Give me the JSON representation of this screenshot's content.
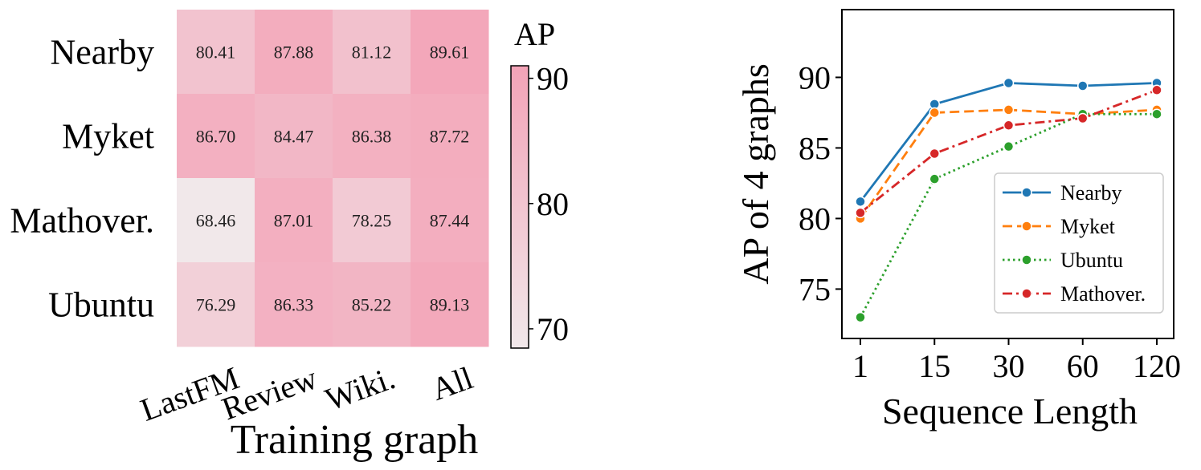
{
  "chart_data": [
    {
      "type": "heatmap",
      "rows": [
        "Nearby",
        "Myket",
        "Mathover.",
        "Ubuntu"
      ],
      "columns": [
        "LastFM",
        "Review",
        "Wiki.",
        "All"
      ],
      "values": [
        [
          80.41,
          87.88,
          81.12,
          89.61
        ],
        [
          86.7,
          84.47,
          86.38,
          87.72
        ],
        [
          68.46,
          87.01,
          78.25,
          87.44
        ],
        [
          76.29,
          86.33,
          85.22,
          89.13
        ]
      ],
      "cell_labels": [
        [
          "80.41",
          "87.88",
          "81.12",
          "89.61"
        ],
        [
          "86.70",
          "84.47",
          "86.38",
          "87.72"
        ],
        [
          "68.46",
          "87.01",
          "78.25",
          "87.44"
        ],
        [
          "76.29",
          "86.33",
          "85.22",
          "89.13"
        ]
      ],
      "xlabel": "Training graph",
      "colorbar": {
        "label": "AP",
        "range": [
          68.46,
          91.0
        ],
        "ticks": [
          70,
          80,
          90
        ],
        "tick_labels": [
          "70",
          "80",
          "90"
        ],
        "color_low": "#f1e8ea",
        "color_high": "#f3a3b7"
      }
    },
    {
      "type": "line",
      "x_categories": [
        "1",
        "15",
        "30",
        "60",
        "120"
      ],
      "series": [
        {
          "name": "Nearby",
          "values": [
            81.2,
            88.1,
            89.6,
            89.4,
            89.6
          ],
          "color": "#1f77b4",
          "dash": "solid"
        },
        {
          "name": "Myket",
          "values": [
            80.0,
            87.5,
            87.7,
            87.4,
            87.7
          ],
          "color": "#ff7f0e",
          "dash": "dashed"
        },
        {
          "name": "Ubuntu",
          "values": [
            73.0,
            82.8,
            85.1,
            87.4,
            87.4
          ],
          "color": "#2ca02c",
          "dash": "dotted"
        },
        {
          "name": "Mathover.",
          "values": [
            80.4,
            84.6,
            86.6,
            87.1,
            89.1
          ],
          "color": "#d62728",
          "dash": "dashdot"
        }
      ],
      "xlabel": "Sequence Length",
      "ylabel": "AP of 4 graphs",
      "yticks": [
        75,
        80,
        85,
        90
      ],
      "ytick_labels": [
        "75",
        "80",
        "85",
        "90"
      ],
      "ylim": [
        71.5,
        94.8
      ],
      "grid": false,
      "legend_position": "lower-right"
    }
  ]
}
